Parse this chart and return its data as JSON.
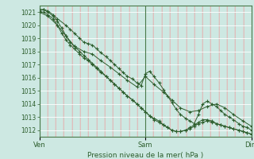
{
  "title": "Pression niveau de la mer( hPa )",
  "ylim": [
    1011.5,
    1021.5
  ],
  "yticks": [
    1012,
    1013,
    1014,
    1015,
    1016,
    1017,
    1018,
    1019,
    1020,
    1021
  ],
  "xtick_labels": [
    "Ven",
    "Sam",
    "Dim"
  ],
  "xtick_pos": [
    0.0,
    1.0,
    2.0
  ],
  "bg_color": "#cde8e2",
  "grid_color_major_h": "#ffffff",
  "grid_color_minor_v": "#e8aaaa",
  "grid_color_major_v": "#4a7a4a",
  "line_color": "#2d5e2d",
  "x_total": 2.0,
  "line1_x": [
    0.0,
    0.04,
    0.08,
    0.13,
    0.17,
    0.25,
    0.29,
    0.33,
    0.38,
    0.42,
    0.46,
    0.5,
    0.54,
    0.58,
    0.63,
    0.67,
    0.71,
    0.75,
    0.79,
    0.83,
    0.88,
    0.92,
    0.96,
    1.0,
    1.04,
    1.08,
    1.13,
    1.17,
    1.21,
    1.25,
    1.29,
    1.33,
    1.38,
    1.42,
    1.46,
    1.5,
    1.54,
    1.58,
    1.63,
    1.67,
    1.71,
    1.75,
    1.79,
    1.83,
    1.88,
    1.92,
    1.96,
    2.0
  ],
  "line1_y": [
    1021.2,
    1021.2,
    1021.1,
    1020.8,
    1020.5,
    1020.0,
    1019.7,
    1019.4,
    1019.0,
    1018.7,
    1018.6,
    1018.5,
    1018.2,
    1017.9,
    1017.6,
    1017.3,
    1017.0,
    1016.7,
    1016.4,
    1016.1,
    1015.9,
    1015.6,
    1015.4,
    1016.3,
    1016.5,
    1016.1,
    1015.6,
    1015.1,
    1014.6,
    1014.1,
    1013.6,
    1013.2,
    1012.9,
    1012.7,
    1012.5,
    1013.2,
    1014.0,
    1014.2,
    1014.0,
    1013.8,
    1013.5,
    1013.2,
    1013.0,
    1012.8,
    1012.5,
    1012.3,
    1012.2,
    1012.0
  ],
  "line2_x": [
    0.0,
    0.04,
    0.08,
    0.13,
    0.17,
    0.21,
    0.25,
    0.29,
    0.33,
    0.38,
    0.42,
    0.46,
    0.5,
    0.54,
    0.58,
    0.63,
    0.67,
    0.71,
    0.75,
    0.79,
    0.83,
    0.88,
    0.92,
    0.96,
    1.0,
    1.04,
    1.08,
    1.13,
    1.17,
    1.21,
    1.25,
    1.29,
    1.33,
    1.38,
    1.42,
    1.46,
    1.5,
    1.54,
    1.58,
    1.63,
    1.67,
    1.71,
    1.75,
    1.79,
    1.83,
    1.88,
    1.92,
    1.96,
    2.0
  ],
  "line2_y": [
    1021.0,
    1021.0,
    1020.8,
    1020.5,
    1020.0,
    1019.4,
    1018.9,
    1018.5,
    1018.2,
    1017.8,
    1017.5,
    1017.3,
    1017.0,
    1016.7,
    1016.4,
    1016.1,
    1015.8,
    1015.5,
    1015.2,
    1014.9,
    1014.6,
    1014.3,
    1014.0,
    1013.7,
    1013.4,
    1013.1,
    1012.9,
    1012.7,
    1012.4,
    1012.2,
    1012.0,
    1011.9,
    1011.9,
    1012.0,
    1012.2,
    1012.4,
    1012.6,
    1012.8,
    1012.8,
    1012.7,
    1012.5,
    1012.4,
    1012.3,
    1012.2,
    1012.1,
    1012.0,
    1011.9,
    1011.8,
    1011.7
  ],
  "line3_x": [
    0.0,
    0.04,
    0.08,
    0.13,
    0.17,
    0.21,
    0.25,
    0.29,
    0.33,
    0.38,
    0.42,
    0.46,
    0.5,
    0.54,
    0.58,
    0.63,
    0.67,
    0.71,
    0.75,
    0.79,
    0.83,
    0.88,
    0.92,
    0.96,
    1.0,
    1.04,
    1.08,
    1.13,
    1.17,
    1.21,
    1.25,
    1.29,
    1.33,
    1.38,
    1.42,
    1.46,
    1.5,
    1.54,
    1.58,
    1.63,
    1.67,
    1.71,
    1.75,
    1.79,
    1.83,
    1.88,
    1.92,
    1.96,
    2.0
  ],
  "line3_y": [
    1021.1,
    1021.2,
    1021.0,
    1020.7,
    1020.3,
    1019.8,
    1019.2,
    1018.7,
    1018.4,
    1018.0,
    1017.7,
    1017.4,
    1017.1,
    1016.8,
    1016.5,
    1016.1,
    1015.8,
    1015.5,
    1015.2,
    1014.9,
    1014.6,
    1014.3,
    1014.0,
    1013.7,
    1013.4,
    1013.1,
    1012.8,
    1012.6,
    1012.4,
    1012.2,
    1012.0,
    1011.9,
    1011.9,
    1012.0,
    1012.1,
    1012.3,
    1012.5,
    1012.6,
    1012.7,
    1012.6,
    1012.5,
    1012.4,
    1012.3,
    1012.2,
    1012.1,
    1012.0,
    1011.9,
    1011.8,
    1011.7
  ],
  "line4_x": [
    0.0,
    0.08,
    0.17,
    0.25,
    0.33,
    0.42,
    0.5,
    0.58,
    0.67,
    0.75,
    0.83,
    0.92,
    1.0,
    1.08,
    1.17,
    1.25,
    1.33,
    1.42,
    1.5,
    1.58,
    1.67,
    1.75,
    1.83,
    1.92,
    2.0
  ],
  "line4_y": [
    1021.0,
    1020.7,
    1020.0,
    1019.2,
    1018.4,
    1018.0,
    1017.8,
    1017.3,
    1016.8,
    1016.3,
    1015.8,
    1015.3,
    1016.1,
    1015.5,
    1014.9,
    1014.3,
    1013.7,
    1013.4,
    1013.5,
    1013.8,
    1014.0,
    1013.7,
    1013.2,
    1012.7,
    1012.3
  ]
}
